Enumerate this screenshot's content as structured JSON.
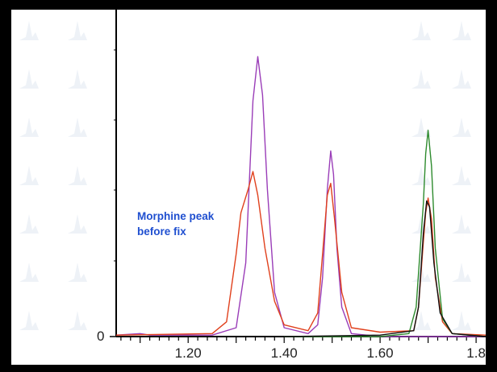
{
  "chart_data": {
    "type": "line",
    "title": "",
    "xlabel": "",
    "ylabel": "",
    "xlim": [
      1.05,
      1.82
    ],
    "ylim": [
      0,
      100
    ],
    "x_ticks": [
      "1.20",
      "1.40",
      "1.60",
      "1.8"
    ],
    "y_ticks": [
      "0"
    ],
    "grid": false,
    "legend": "none",
    "annotation": "Morphine peak before fix",
    "series": [
      {
        "color": "#9a3db8",
        "points": [
          [
            1.05,
            0.5
          ],
          [
            1.1,
            1
          ],
          [
            1.12,
            0.5
          ],
          [
            1.25,
            0.5
          ],
          [
            1.3,
            3
          ],
          [
            1.32,
            25
          ],
          [
            1.335,
            80
          ],
          [
            1.345,
            95
          ],
          [
            1.355,
            82
          ],
          [
            1.365,
            50
          ],
          [
            1.38,
            15
          ],
          [
            1.4,
            3
          ],
          [
            1.45,
            1
          ],
          [
            1.47,
            4
          ],
          [
            1.48,
            20
          ],
          [
            1.49,
            50
          ],
          [
            1.497,
            63
          ],
          [
            1.503,
            55
          ],
          [
            1.51,
            30
          ],
          [
            1.52,
            10
          ],
          [
            1.54,
            1
          ],
          [
            1.6,
            0
          ],
          [
            1.82,
            0
          ]
        ]
      },
      {
        "color": "#e0401c",
        "points": [
          [
            1.05,
            0.5
          ],
          [
            1.25,
            1
          ],
          [
            1.28,
            5
          ],
          [
            1.3,
            28
          ],
          [
            1.31,
            42
          ],
          [
            1.325,
            50
          ],
          [
            1.335,
            56
          ],
          [
            1.345,
            48
          ],
          [
            1.36,
            30
          ],
          [
            1.38,
            12
          ],
          [
            1.4,
            4
          ],
          [
            1.45,
            2
          ],
          [
            1.47,
            8
          ],
          [
            1.48,
            28
          ],
          [
            1.49,
            48
          ],
          [
            1.497,
            52
          ],
          [
            1.505,
            40
          ],
          [
            1.52,
            15
          ],
          [
            1.54,
            3
          ],
          [
            1.6,
            1.5
          ],
          [
            1.67,
            2
          ],
          [
            1.68,
            10
          ],
          [
            1.69,
            32
          ],
          [
            1.695,
            42
          ],
          [
            1.7,
            47
          ],
          [
            1.707,
            40
          ],
          [
            1.715,
            20
          ],
          [
            1.73,
            5
          ],
          [
            1.75,
            1
          ],
          [
            1.82,
            0.5
          ]
        ]
      },
      {
        "color": "#2e8b2e",
        "points": [
          [
            1.4,
            0
          ],
          [
            1.6,
            0
          ],
          [
            1.66,
            1
          ],
          [
            1.675,
            10
          ],
          [
            1.69,
            45
          ],
          [
            1.695,
            62
          ],
          [
            1.7,
            70
          ],
          [
            1.707,
            58
          ],
          [
            1.715,
            30
          ],
          [
            1.73,
            6
          ],
          [
            1.75,
            1
          ],
          [
            1.82,
            0
          ]
        ]
      },
      {
        "color": "#111111",
        "points": [
          [
            1.4,
            0
          ],
          [
            1.6,
            0.5
          ],
          [
            1.67,
            2
          ],
          [
            1.68,
            10
          ],
          [
            1.69,
            35
          ],
          [
            1.697,
            46
          ],
          [
            1.703,
            44
          ],
          [
            1.712,
            25
          ],
          [
            1.725,
            8
          ],
          [
            1.75,
            1
          ],
          [
            1.82,
            0
          ]
        ]
      }
    ]
  }
}
